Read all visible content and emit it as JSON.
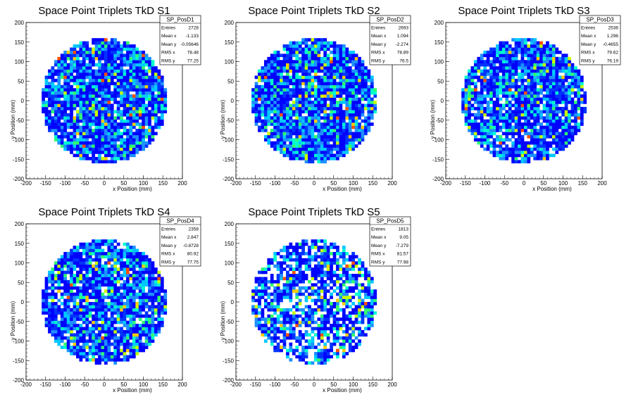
{
  "chart_data": [
    {
      "type": "heatmap",
      "title": "Space Point Triplets TkD S1",
      "xlabel": "x Position (mm)",
      "ylabel": "y Position (mm)",
      "xlim": [
        -200,
        200
      ],
      "ylim": [
        -200,
        200
      ],
      "xticks": [
        -200,
        -150,
        -100,
        -50,
        0,
        50,
        100,
        150,
        200
      ],
      "yticks": [
        -200,
        -150,
        -100,
        -50,
        0,
        50,
        100,
        150,
        200
      ],
      "stats": {
        "name": "SP_PosD1",
        "rows": [
          [
            "Entries",
            "2728"
          ],
          [
            "Mean x",
            "-1.133"
          ],
          [
            "Mean y",
            "-0.05646"
          ],
          [
            "RMS x",
            "78.48"
          ],
          [
            "RMS y",
            "77.25"
          ]
        ]
      },
      "distribution": {
        "shape": "disk",
        "radius": 160,
        "fill": 0.95,
        "seed": 11
      }
    },
    {
      "type": "heatmap",
      "title": "Space Point Triplets TkD S2",
      "xlabel": "x Position (mm)",
      "ylabel": "y Position (mm)",
      "xlim": [
        -200,
        200
      ],
      "ylim": [
        -200,
        200
      ],
      "xticks": [
        -200,
        -150,
        -100,
        -50,
        0,
        50,
        100,
        150,
        200
      ],
      "yticks": [
        -200,
        -150,
        -100,
        -50,
        0,
        50,
        100,
        150,
        200
      ],
      "stats": {
        "name": "SP_PosD2",
        "rows": [
          [
            "Entries",
            "2693"
          ],
          [
            "Mean x",
            "1.094"
          ],
          [
            "Mean y",
            "-2.274"
          ],
          [
            "RMS x",
            "78.89"
          ],
          [
            "RMS y",
            "76.5"
          ]
        ]
      },
      "distribution": {
        "shape": "disk",
        "radius": 160,
        "fill": 0.92,
        "seed": 23
      }
    },
    {
      "type": "heatmap",
      "title": "Space Point Triplets TkD S3",
      "xlabel": "x Position (mm)",
      "ylabel": "y Position (mm)",
      "xlim": [
        -200,
        200
      ],
      "ylim": [
        -200,
        200
      ],
      "xticks": [
        -200,
        -150,
        -100,
        -50,
        0,
        50,
        100,
        150,
        200
      ],
      "yticks": [
        -200,
        -150,
        -100,
        -50,
        0,
        50,
        100,
        150,
        200
      ],
      "stats": {
        "name": "SP_PosD3",
        "rows": [
          [
            "Entries",
            "2536"
          ],
          [
            "Mean x",
            "1.296"
          ],
          [
            "Mean y",
            "-0.4655"
          ],
          [
            "RMS x",
            "79.62"
          ],
          [
            "RMS y",
            "76.19"
          ]
        ]
      },
      "distribution": {
        "shape": "disk",
        "radius": 160,
        "fill": 0.9,
        "seed": 37
      }
    },
    {
      "type": "heatmap",
      "title": "Space Point Triplets TkD S4",
      "xlabel": "x Position (mm)",
      "ylabel": "y Position (mm)",
      "xlim": [
        -200,
        200
      ],
      "ylim": [
        -200,
        200
      ],
      "xticks": [
        -200,
        -150,
        -100,
        -50,
        0,
        50,
        100,
        150,
        200
      ],
      "yticks": [
        -200,
        -150,
        -100,
        -50,
        0,
        50,
        100,
        150,
        200
      ],
      "stats": {
        "name": "SP_PosD4",
        "rows": [
          [
            "Entries",
            "2358"
          ],
          [
            "Mean x",
            "2.847"
          ],
          [
            "Mean y",
            "-0.8728"
          ],
          [
            "RMS x",
            "80.92"
          ],
          [
            "RMS y",
            "77.75"
          ]
        ]
      },
      "distribution": {
        "shape": "disk",
        "radius": 160,
        "fill": 0.88,
        "seed": 53
      }
    },
    {
      "type": "heatmap",
      "title": "Space Point Triplets TkD S5",
      "xlabel": "x Position (mm)",
      "ylabel": "y Position (mm)",
      "xlim": [
        -200,
        200
      ],
      "ylim": [
        -200,
        200
      ],
      "xticks": [
        -200,
        -150,
        -100,
        -50,
        0,
        50,
        100,
        150,
        200
      ],
      "yticks": [
        -200,
        -150,
        -100,
        -50,
        0,
        50,
        100,
        150,
        200
      ],
      "stats": {
        "name": "SP_PosD5",
        "rows": [
          [
            "Entries",
            "1813"
          ],
          [
            "Mean x",
            "9.05"
          ],
          [
            "Mean y",
            "-7.279"
          ],
          [
            "RMS x",
            "81.57"
          ],
          [
            "RMS y",
            "77.98"
          ]
        ]
      },
      "distribution": {
        "shape": "disk",
        "radius": 160,
        "fill": 0.72,
        "seed": 71
      }
    }
  ],
  "colors": {
    "palette": [
      "#0000ff",
      "#0033ff",
      "#1e90ff",
      "#00c8ff",
      "#00ffd0",
      "#30ff70",
      "#c8ff00",
      "#ffcc00",
      "#ff5000"
    ],
    "axis": "#000000",
    "stats_border": "#000000"
  }
}
